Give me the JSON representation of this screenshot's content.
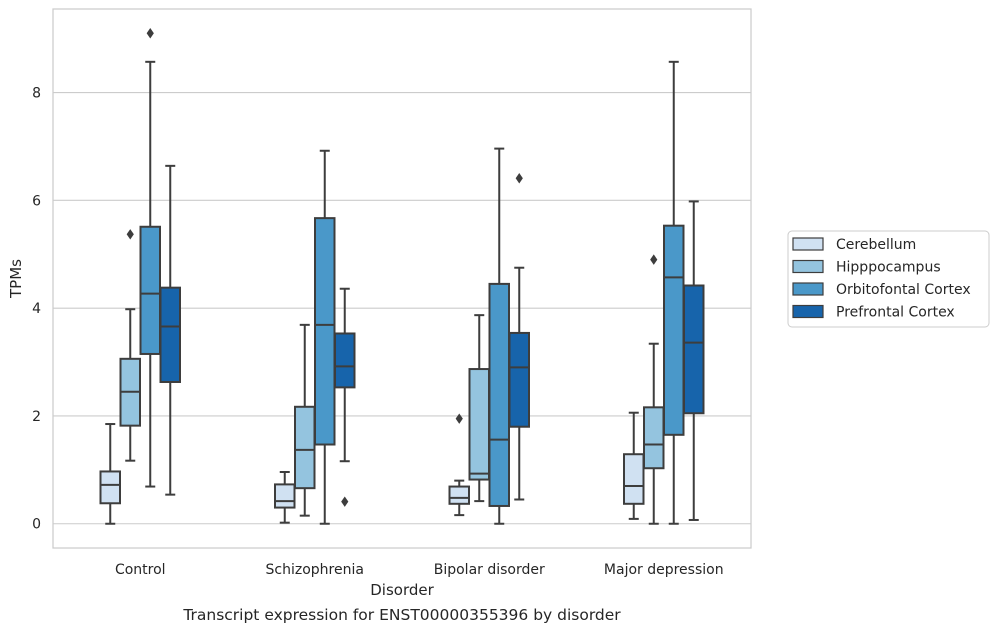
{
  "caption": "Transcript expression for ENST00000355396 by disorder",
  "chart_data": {
    "type": "box",
    "xlabel": "Disorder",
    "ylabel": "TPMs",
    "ylim": [
      -0.45,
      9.55
    ],
    "yticks": [
      0,
      2,
      4,
      6,
      8
    ],
    "grid": "horizontal",
    "legend_position": "right",
    "categories": [
      "Control",
      "Schizophrenia",
      "Bipolar disorder",
      "Major depression"
    ],
    "series": [
      {
        "name": "Cerebellum",
        "color": "#d0e1f2",
        "boxes": [
          {
            "whislo": 0.0,
            "q1": 0.38,
            "med": 0.72,
            "q3": 0.97,
            "whishi": 1.85,
            "fliers": []
          },
          {
            "whislo": 0.02,
            "q1": 0.3,
            "med": 0.42,
            "q3": 0.73,
            "whishi": 0.96,
            "fliers": []
          },
          {
            "whislo": 0.16,
            "q1": 0.37,
            "med": 0.48,
            "q3": 0.69,
            "whishi": 0.8,
            "fliers": [
              1.95
            ]
          },
          {
            "whislo": 0.09,
            "q1": 0.37,
            "med": 0.7,
            "q3": 1.29,
            "whishi": 2.06,
            "fliers": []
          }
        ]
      },
      {
        "name": "Hipppocampus",
        "color": "#94c4df",
        "boxes": [
          {
            "whislo": 1.17,
            "q1": 1.82,
            "med": 2.45,
            "q3": 3.06,
            "whishi": 3.98,
            "fliers": [
              5.37
            ]
          },
          {
            "whislo": 0.15,
            "q1": 0.66,
            "med": 1.37,
            "q3": 2.17,
            "whishi": 3.69,
            "fliers": []
          },
          {
            "whislo": 0.42,
            "q1": 0.82,
            "med": 0.93,
            "q3": 2.87,
            "whishi": 3.87,
            "fliers": []
          },
          {
            "whislo": 0.0,
            "q1": 1.03,
            "med": 1.47,
            "q3": 2.16,
            "whishi": 3.34,
            "fliers": [
              4.9
            ]
          }
        ]
      },
      {
        "name": "Orbitofontal Cortex",
        "color": "#4a98c9",
        "boxes": [
          {
            "whislo": 0.69,
            "q1": 3.15,
            "med": 4.27,
            "q3": 5.51,
            "whishi": 8.57,
            "fliers": [
              9.1
            ]
          },
          {
            "whislo": 0.0,
            "q1": 1.47,
            "med": 3.69,
            "q3": 5.67,
            "whishi": 6.92,
            "fliers": []
          },
          {
            "whislo": 0.0,
            "q1": 0.33,
            "med": 1.56,
            "q3": 4.45,
            "whishi": 6.96,
            "fliers": []
          },
          {
            "whislo": 0.0,
            "q1": 1.65,
            "med": 4.57,
            "q3": 5.53,
            "whishi": 8.57,
            "fliers": []
          }
        ]
      },
      {
        "name": "Prefrontal Cortex",
        "color": "#1764ab",
        "boxes": [
          {
            "whislo": 0.54,
            "q1": 2.63,
            "med": 3.66,
            "q3": 4.38,
            "whishi": 6.64,
            "fliers": []
          },
          {
            "whislo": 1.16,
            "q1": 2.53,
            "med": 2.92,
            "q3": 3.53,
            "whishi": 4.36,
            "fliers": [
              0.41
            ]
          },
          {
            "whislo": 0.45,
            "q1": 1.8,
            "med": 2.9,
            "q3": 3.54,
            "whishi": 4.75,
            "fliers": [
              6.41
            ]
          },
          {
            "whislo": 0.07,
            "q1": 2.05,
            "med": 3.36,
            "q3": 4.42,
            "whishi": 5.98,
            "fliers": []
          }
        ]
      }
    ]
  }
}
